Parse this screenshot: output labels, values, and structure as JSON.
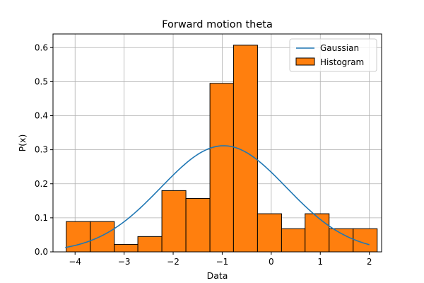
{
  "chart_data": {
    "type": "bar",
    "title": "Forward motion theta",
    "xlabel": "Data",
    "ylabel": "P(x)",
    "xlim": [
      -4.45,
      2.25
    ],
    "ylim": [
      0.0,
      0.64
    ],
    "xticks": [
      -4,
      -3,
      -2,
      -1,
      0,
      1,
      2
    ],
    "yticks": [
      0.0,
      0.1,
      0.2,
      0.3,
      0.4,
      0.5,
      0.6
    ],
    "grid": true,
    "legend_position": "top-right",
    "histogram": {
      "name": "Histogram",
      "color": "#ff7f0e",
      "edge_color": "#000000",
      "bin_edges": [
        -4.18,
        -3.69,
        -3.2,
        -2.72,
        -2.23,
        -1.74,
        -1.25,
        -0.77,
        -0.28,
        0.21,
        0.69,
        1.18,
        1.67,
        2.16
      ],
      "values": [
        0.089,
        0.089,
        0.022,
        0.045,
        0.18,
        0.157,
        0.495,
        0.607,
        0.112,
        0.068,
        0.112,
        0.068,
        0.068
      ]
    },
    "gaussian": {
      "name": "Gaussian",
      "color": "#1f77b4",
      "mean": -0.97,
      "std": 1.28,
      "x_range": [
        -4.2,
        2.0
      ]
    }
  }
}
